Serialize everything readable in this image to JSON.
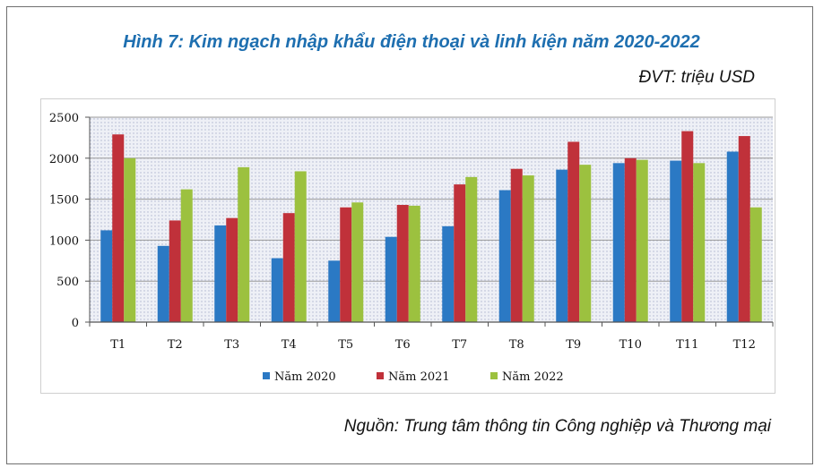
{
  "title": "Hình 7: Kim ngạch nhập khẩu điện thoại và linh kiện năm 2020-2022",
  "unit": "ĐVT: triệu USD",
  "source": "Nguồn: Trung tâm thông tin Công nghiệp và Thương mại",
  "colors": {
    "title": "#1e6fb0",
    "series_2020": "#2b79c4",
    "series_2021": "#c0313a",
    "series_2022": "#9cc13f"
  },
  "chart_data": {
    "type": "bar",
    "categories": [
      "T1",
      "T2",
      "T3",
      "T4",
      "T5",
      "T6",
      "T7",
      "T8",
      "T9",
      "T10",
      "T11",
      "T12"
    ],
    "series": [
      {
        "name": "Năm 2020",
        "values": [
          1120,
          930,
          1180,
          780,
          750,
          1040,
          1170,
          1610,
          1860,
          1940,
          1970,
          2080
        ]
      },
      {
        "name": "Năm 2021",
        "values": [
          2290,
          1240,
          1270,
          1330,
          1400,
          1430,
          1680,
          1870,
          2200,
          2000,
          2330,
          2270
        ]
      },
      {
        "name": "Năm 2022",
        "values": [
          2000,
          1620,
          1890,
          1840,
          1460,
          1420,
          1770,
          1790,
          1920,
          1980,
          1940,
          1400
        ]
      }
    ],
    "yticks": [
      0,
      500,
      1000,
      1500,
      2000,
      2500
    ],
    "ylim": [
      0,
      2500
    ],
    "legend_position": "bottom",
    "grid": true
  }
}
